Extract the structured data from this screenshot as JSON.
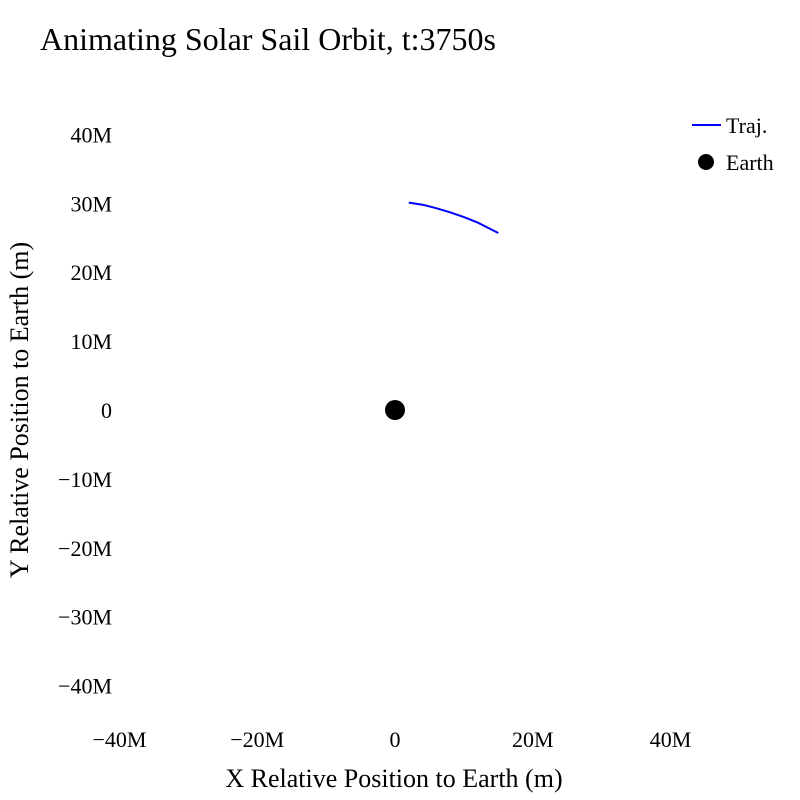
{
  "chart_data": {
    "type": "scatter",
    "title": "Animating Solar Sail Orbit, t:3750s",
    "xlabel": "X Relative Position to Earth (m)",
    "ylabel": "Y Relative Position to Earth (m)",
    "xlim": [
      -45000000,
      45000000
    ],
    "ylim": [
      -45000000,
      45000000
    ],
    "xticks": [
      {
        "value": -40000000,
        "label": "−40M"
      },
      {
        "value": -20000000,
        "label": "−20M"
      },
      {
        "value": 0,
        "label": "0"
      },
      {
        "value": 20000000,
        "label": "20M"
      },
      {
        "value": 40000000,
        "label": "40M"
      }
    ],
    "yticks": [
      {
        "value": 40000000,
        "label": "40M"
      },
      {
        "value": 30000000,
        "label": "30M"
      },
      {
        "value": 20000000,
        "label": "20M"
      },
      {
        "value": 10000000,
        "label": "10M"
      },
      {
        "value": 0,
        "label": "0"
      },
      {
        "value": -10000000,
        "label": "−10M"
      },
      {
        "value": -20000000,
        "label": "−20M"
      },
      {
        "value": -30000000,
        "label": "−30M"
      },
      {
        "value": -40000000,
        "label": "−40M"
      }
    ],
    "grid": false,
    "legend_position": "top-right",
    "series": [
      {
        "name": "Traj.",
        "mode": "line",
        "color": "#0000ff",
        "x": [
          2000000,
          4000000,
          6000000,
          8000000,
          10000000,
          12000000,
          14000000,
          15000000
        ],
        "y": [
          30100000,
          29800000,
          29300000,
          28700000,
          28000000,
          27200000,
          26200000,
          25700000
        ]
      },
      {
        "name": "Earth",
        "mode": "marker",
        "color": "#000000",
        "x": [
          0
        ],
        "y": [
          0
        ]
      }
    ]
  }
}
